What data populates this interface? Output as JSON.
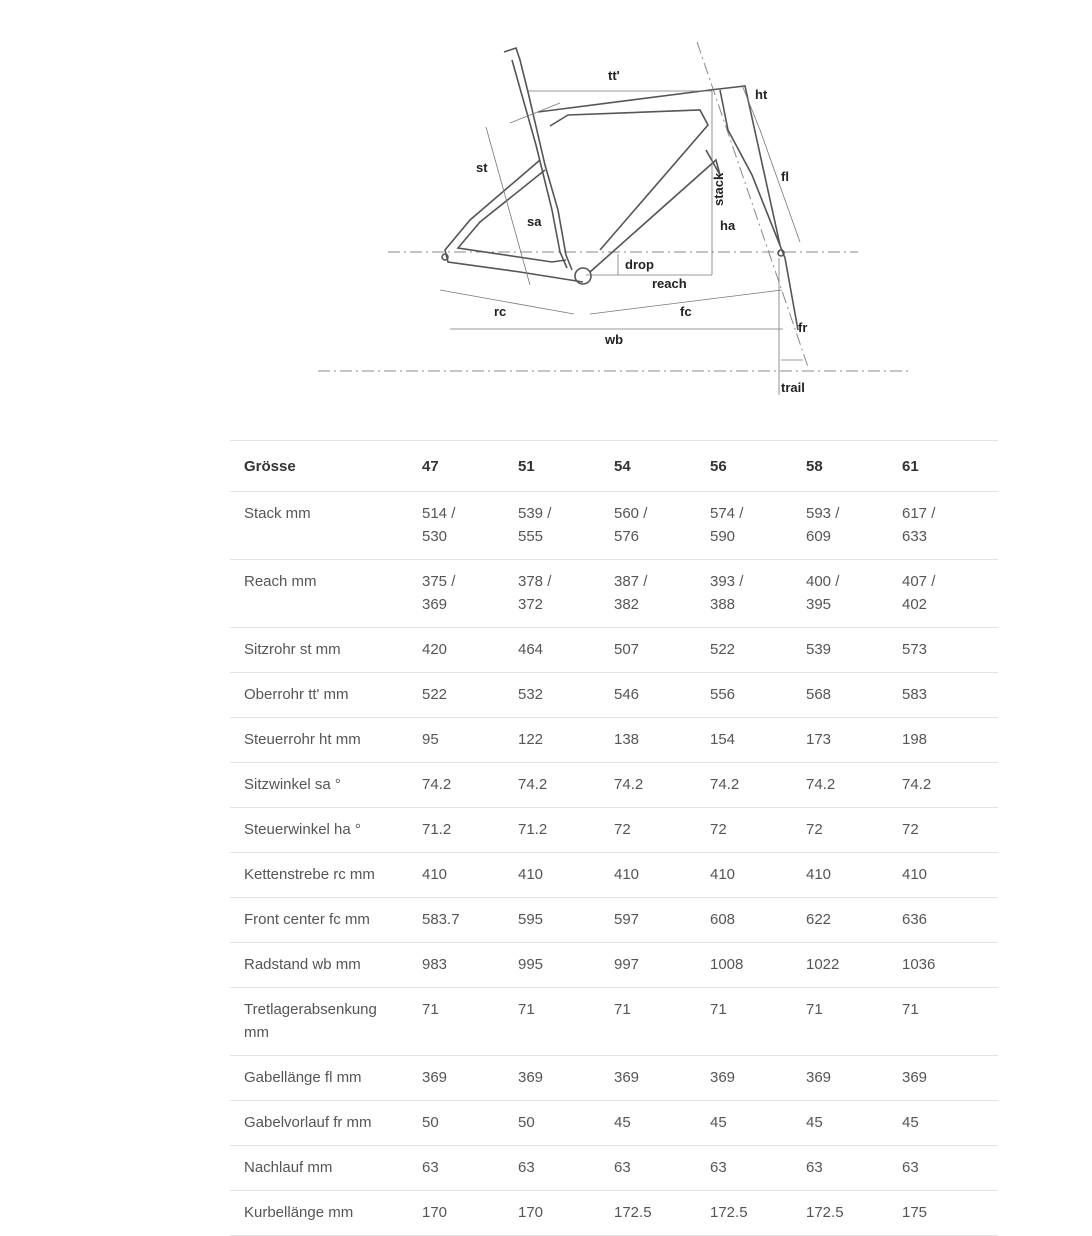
{
  "diagram": {
    "labels": {
      "tt": "tt'",
      "ht": "ht",
      "st": "st",
      "fl": "fl",
      "stack": "stack",
      "sa": "sa",
      "ha": "ha",
      "drop": "drop",
      "reach": "reach",
      "rc": "rc",
      "fc": "fc",
      "fr": "fr",
      "wb": "wb",
      "trail": "trail"
    }
  },
  "table": {
    "header": {
      "label": "Grösse",
      "sizes": [
        "47",
        "51",
        "54",
        "56",
        "58",
        "61"
      ]
    },
    "rows": [
      {
        "label": "Stack mm",
        "values": [
          "514 / 530",
          "539 / 555",
          "560 / 576",
          "574 / 590",
          "593 / 609",
          "617 / 633"
        ]
      },
      {
        "label": "Reach mm",
        "values": [
          "375 / 369",
          "378 / 372",
          "387 / 382",
          "393 / 388",
          "400 / 395",
          "407 / 402"
        ]
      },
      {
        "label": "Sitzrohr st mm",
        "values": [
          "420",
          "464",
          "507",
          "522",
          "539",
          "573"
        ]
      },
      {
        "label": "Oberrohr tt' mm",
        "values": [
          "522",
          "532",
          "546",
          "556",
          "568",
          "583"
        ]
      },
      {
        "label": "Steuerrohr ht mm",
        "values": [
          "95",
          "122",
          "138",
          "154",
          "173",
          "198"
        ]
      },
      {
        "label": "Sitzwinkel sa °",
        "values": [
          "74.2",
          "74.2",
          "74.2",
          "74.2",
          "74.2",
          "74.2"
        ]
      },
      {
        "label": "Steuerwinkel ha °",
        "values": [
          "71.2",
          "71.2",
          "72",
          "72",
          "72",
          "72"
        ]
      },
      {
        "label": "Kettenstrebe rc mm",
        "values": [
          "410",
          "410",
          "410",
          "410",
          "410",
          "410"
        ]
      },
      {
        "label": "Front center fc mm",
        "values": [
          "583.7",
          "595",
          "597",
          "608",
          "622",
          "636"
        ]
      },
      {
        "label": "Radstand wb mm",
        "values": [
          "983",
          "995",
          "997",
          "1008",
          "1022",
          "1036"
        ]
      },
      {
        "label": "Tretlagerabsenkung mm",
        "values": [
          "71",
          "71",
          "71",
          "71",
          "71",
          "71"
        ]
      },
      {
        "label": "Gabellänge fl mm",
        "values": [
          "369",
          "369",
          "369",
          "369",
          "369",
          "369"
        ]
      },
      {
        "label": "Gabelvorlauf fr mm",
        "values": [
          "50",
          "50",
          "45",
          "45",
          "45",
          "45"
        ]
      },
      {
        "label": "Nachlauf mm",
        "values": [
          "63",
          "63",
          "63",
          "63",
          "63",
          "63"
        ]
      },
      {
        "label": "Kurbellänge mm",
        "values": [
          "170",
          "170",
          "172.5",
          "172.5",
          "172.5",
          "175"
        ]
      }
    ]
  }
}
